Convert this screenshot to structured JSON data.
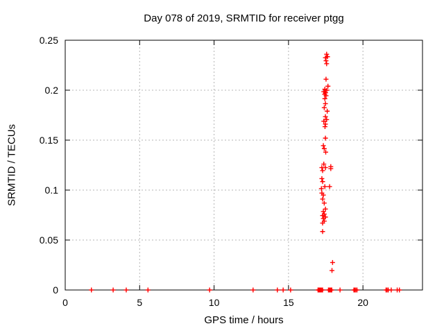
{
  "chart_data": {
    "type": "scatter",
    "title": "Day 078 of 2019, SRMTID for receiver ptgg",
    "xlabel": "GPS time / hours",
    "ylabel": "SRMTID / TECUs",
    "xlim": [
      0,
      24
    ],
    "ylim": [
      0,
      0.25
    ],
    "xticks": [
      0,
      5,
      10,
      15,
      20
    ],
    "xtick_labels": [
      "0",
      "5",
      "10",
      "15",
      "20"
    ],
    "yticks": [
      0,
      0.05,
      0.1,
      0.15,
      0.2,
      0.25
    ],
    "ytick_labels": [
      "0",
      "0.05",
      "0.1",
      "0.15",
      "0.2",
      "0.25"
    ],
    "grid": true,
    "legend": "none",
    "marker": "plus",
    "marker_color": "#ff0000",
    "grid_color": "#b4b4b4",
    "border_color": "#000000",
    "series": [
      {
        "name": "SRMTID",
        "points": [
          [
            1.76,
            0
          ],
          [
            3.22,
            0
          ],
          [
            4.1,
            0
          ],
          [
            5.56,
            0
          ],
          [
            9.7,
            0
          ],
          [
            12.62,
            0
          ],
          [
            14.25,
            0
          ],
          [
            14.64,
            0
          ],
          [
            15.14,
            0
          ],
          [
            16.98,
            0
          ],
          [
            17.03,
            0
          ],
          [
            17.08,
            0
          ],
          [
            17.13,
            0
          ],
          [
            17.18,
            0
          ],
          [
            17.24,
            0
          ],
          [
            17.29,
            0
          ],
          [
            17.68,
            0
          ],
          [
            17.74,
            0
          ],
          [
            17.8,
            0
          ],
          [
            17.86,
            0
          ],
          [
            17.91,
            0
          ],
          [
            18.46,
            0
          ],
          [
            19.39,
            0
          ],
          [
            19.45,
            0
          ],
          [
            19.52,
            0
          ],
          [
            19.6,
            0
          ],
          [
            21.55,
            0
          ],
          [
            21.62,
            0
          ],
          [
            21.7,
            0
          ],
          [
            21.9,
            0
          ],
          [
            22.3,
            0
          ],
          [
            22.45,
            0
          ],
          [
            17.56,
            0.236
          ],
          [
            17.62,
            0.2335
          ],
          [
            17.48,
            0.2325
          ],
          [
            17.52,
            0.2295
          ],
          [
            17.56,
            0.2265
          ],
          [
            17.52,
            0.211
          ],
          [
            17.65,
            0.204
          ],
          [
            17.44,
            0.201
          ],
          [
            17.57,
            0.2
          ],
          [
            17.37,
            0.1985
          ],
          [
            17.49,
            0.1975
          ],
          [
            17.43,
            0.196
          ],
          [
            17.52,
            0.1945
          ],
          [
            17.44,
            0.1915
          ],
          [
            17.48,
            0.1865
          ],
          [
            17.4,
            0.1825
          ],
          [
            17.6,
            0.179
          ],
          [
            17.48,
            0.1735
          ],
          [
            17.56,
            0.1705
          ],
          [
            17.37,
            0.169
          ],
          [
            17.48,
            0.166
          ],
          [
            17.45,
            0.1635
          ],
          [
            17.48,
            0.152
          ],
          [
            17.34,
            0.1445
          ],
          [
            17.4,
            0.1415
          ],
          [
            17.5,
            0.138
          ],
          [
            17.37,
            0.126
          ],
          [
            17.84,
            0.1235
          ],
          [
            17.24,
            0.1225
          ],
          [
            17.48,
            0.1225
          ],
          [
            17.84,
            0.1215
          ],
          [
            17.29,
            0.1195
          ],
          [
            17.24,
            0.1115
          ],
          [
            17.29,
            0.1085
          ],
          [
            17.44,
            0.1035
          ],
          [
            17.76,
            0.1035
          ],
          [
            17.21,
            0.1015
          ],
          [
            17.24,
            0.097
          ],
          [
            17.34,
            0.095
          ],
          [
            17.29,
            0.091
          ],
          [
            17.4,
            0.087
          ],
          [
            17.48,
            0.081
          ],
          [
            17.34,
            0.0785
          ],
          [
            17.4,
            0.076
          ],
          [
            17.29,
            0.0745
          ],
          [
            17.48,
            0.073
          ],
          [
            17.34,
            0.0715
          ],
          [
            17.4,
            0.069
          ],
          [
            17.29,
            0.067
          ],
          [
            17.29,
            0.0585
          ],
          [
            17.96,
            0.0275
          ],
          [
            17.92,
            0.0195
          ]
        ]
      }
    ]
  }
}
